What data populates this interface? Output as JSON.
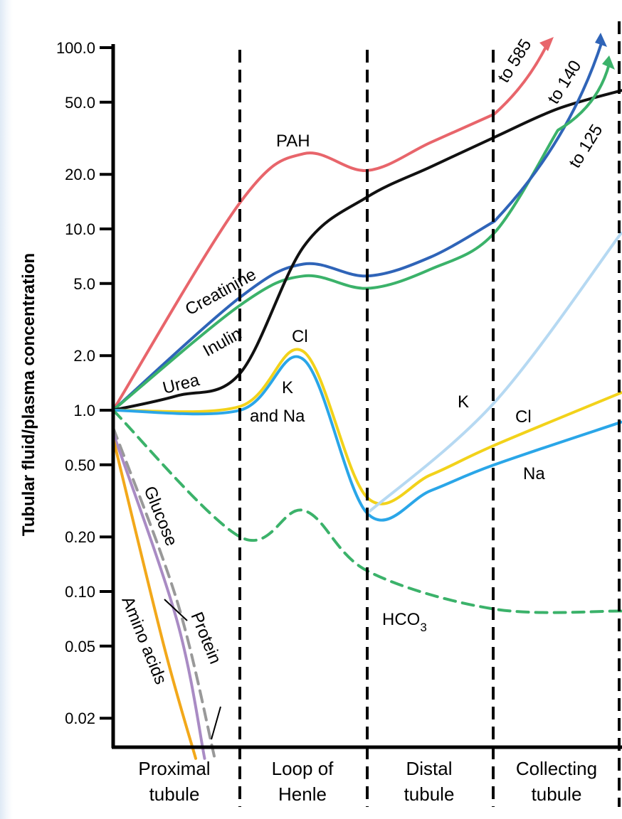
{
  "chart_data": {
    "type": "line",
    "title": "",
    "ylabel": "Tubular fluid/plasma concentration",
    "xlabel": "",
    "yscale": "log",
    "ylim": [
      0.013,
      100
    ],
    "grid": false,
    "segments": [
      {
        "line1": "Proximal",
        "line2": "tubule"
      },
      {
        "line1": "Loop of",
        "line2": "Henle"
      },
      {
        "line1": "Distal",
        "line2": "tubule"
      },
      {
        "line1": "Collecting",
        "line2": "tubule"
      }
    ],
    "y_ticks": [
      {
        "value": 100,
        "label": "100.0"
      },
      {
        "value": 50,
        "label": "50.0"
      },
      {
        "value": 20,
        "label": "20.0"
      },
      {
        "value": 10,
        "label": "10.0"
      },
      {
        "value": 5,
        "label": "5.0"
      },
      {
        "value": 2,
        "label": "2.0"
      },
      {
        "value": 1,
        "label": "1.0"
      },
      {
        "value": 0.5,
        "label": "0.50"
      },
      {
        "value": 0.2,
        "label": "0.20"
      },
      {
        "value": 0.1,
        "label": "0.10"
      },
      {
        "value": 0.05,
        "label": "0.05"
      },
      {
        "value": 0.02,
        "label": "0.02"
      }
    ],
    "x_range": [
      0,
      4
    ],
    "series": [
      {
        "name": "PAH",
        "color": "#e8656b",
        "dash": false,
        "x": [
          0,
          1.0,
          1.5,
          2.0,
          2.5,
          3.0
        ],
        "y": [
          1.0,
          14.0,
          26.0,
          21.0,
          30.0,
          43.0
        ]
      },
      {
        "name": "Creatinine",
        "color": "#2f64b8",
        "dash": false,
        "x": [
          0,
          1.0,
          1.5,
          2.0,
          2.5,
          3.0
        ],
        "y": [
          1.0,
          4.2,
          6.4,
          5.5,
          7.0,
          11.0
        ]
      },
      {
        "name": "Inulin",
        "color": "#3bb26a",
        "dash": false,
        "x": [
          0,
          1.0,
          1.5,
          2.0,
          2.5,
          3.0,
          3.5
        ],
        "y": [
          1.0,
          3.8,
          5.5,
          4.7,
          6.0,
          9.5,
          35.0
        ]
      },
      {
        "name": "Urea",
        "color": "#111111",
        "dash": false,
        "x": [
          0,
          0.5,
          1.0,
          1.5,
          2.0,
          2.5,
          3.0,
          3.5,
          4.0
        ],
        "y": [
          1.0,
          1.2,
          1.6,
          8.0,
          15.0,
          22.0,
          32.0,
          46.0,
          58.0
        ]
      },
      {
        "name": "Cl",
        "color": "#f2d21a",
        "dash": false,
        "x": [
          0,
          1.0,
          1.5,
          2.0,
          2.5,
          3.0,
          4.0
        ],
        "y": [
          1.0,
          1.05,
          2.1,
          0.33,
          0.44,
          0.64,
          1.25
        ]
      },
      {
        "name": "K and Na",
        "color": "#2aa6e8",
        "dash": false,
        "x": [
          0,
          1.0,
          1.5,
          2.0,
          2.5,
          3.0,
          4.0
        ],
        "y": [
          1.0,
          1.0,
          1.9,
          0.27,
          0.36,
          0.5,
          0.86
        ]
      },
      {
        "name": "K",
        "color": "#b6d9f2",
        "dash": false,
        "x": [
          2.0,
          3.0,
          4.0
        ],
        "y": [
          0.27,
          1.1,
          9.5
        ]
      },
      {
        "name": "HCO3",
        "color": "#3bb26a",
        "dash": true,
        "x": [
          0,
          1.0,
          1.5,
          2.0,
          3.0,
          4.0
        ],
        "y": [
          1.0,
          0.2,
          0.28,
          0.13,
          0.08,
          0.078
        ]
      },
      {
        "name": "Glucose",
        "color": "#999999",
        "dash": true,
        "x": [
          0,
          0.5,
          0.8
        ],
        "y": [
          0.8,
          0.09,
          0.012
        ]
      },
      {
        "name": "Protein",
        "color": "#a98bc4",
        "dash": false,
        "x": [
          0,
          0.5,
          0.72
        ],
        "y": [
          0.75,
          0.07,
          0.012
        ]
      },
      {
        "name": "Amino acids",
        "color": "#f2a81a",
        "dash": false,
        "x": [
          0,
          0.4,
          0.65
        ],
        "y": [
          0.7,
          0.05,
          0.012
        ]
      }
    ],
    "annotations": {
      "to585": "to 585",
      "to140": "to 140",
      "to125": "to 125",
      "pah": "PAH",
      "creatinine": "Creatinine",
      "inulin": "Inulin",
      "urea": "Urea",
      "cl_loop": "Cl",
      "k_loop": "K",
      "and_na": "and Na",
      "k_collect": "K",
      "cl_collect": "Cl",
      "na_collect": "Na",
      "hco3": "HCO",
      "hco3_sub": "3",
      "glucose": "Glucose",
      "protein": "Protein",
      "amino": "Amino acids"
    }
  }
}
